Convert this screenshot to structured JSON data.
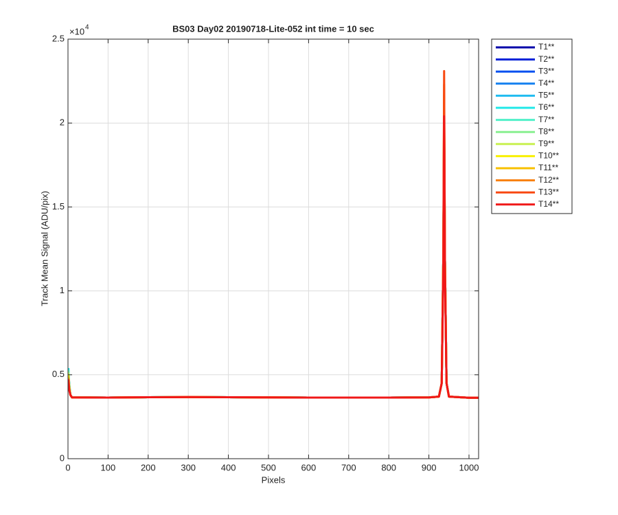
{
  "chart_data": {
    "type": "line",
    "title": "BS03 Day02 20190718-Lite-052 int time = 10 sec",
    "x_label": "Pixels",
    "y_label": "Track Mean Signal (ADU/pix)",
    "y_multiplier": "×10",
    "y_exponent": "4",
    "xlim": [
      0,
      1024
    ],
    "ylim": [
      0,
      25000
    ],
    "xticks": [
      0,
      100,
      200,
      300,
      400,
      500,
      600,
      700,
      800,
      900,
      1000
    ],
    "yticks": [
      0,
      {
        "value": 5000,
        "label": "0.5"
      },
      {
        "value": 10000,
        "label": "1"
      },
      {
        "value": 15000,
        "label": "1.5"
      },
      {
        "value": 20000,
        "label": "2"
      },
      {
        "value": 25000,
        "label": "2.5"
      }
    ],
    "grid": true,
    "legend": "outside-right",
    "x": [
      1,
      3,
      6,
      10,
      100,
      200,
      300,
      400,
      500,
      600,
      700,
      800,
      900,
      925,
      932,
      936,
      938,
      940,
      944,
      950,
      1000,
      1024
    ],
    "series": [
      {
        "name": "T1**",
        "color": "#0000a8",
        "values": [
          5000,
          4300,
          3800,
          3650,
          3640,
          3660,
          3670,
          3660,
          3650,
          3640,
          3640,
          3640,
          3650,
          3700,
          4500,
          12000,
          20000,
          12000,
          4500,
          3700,
          3630,
          3630
        ]
      },
      {
        "name": "T2**",
        "color": "#0020d8",
        "values": [
          5100,
          4350,
          3800,
          3650,
          3640,
          3660,
          3670,
          3660,
          3650,
          3640,
          3640,
          3640,
          3650,
          3700,
          4500,
          12000,
          20100,
          12000,
          4500,
          3700,
          3630,
          3630
        ]
      },
      {
        "name": "T3**",
        "color": "#0050f0",
        "values": [
          5200,
          4400,
          3800,
          3650,
          3640,
          3660,
          3670,
          3660,
          3650,
          3640,
          3640,
          3640,
          3650,
          3700,
          4500,
          12000,
          20200,
          12000,
          4500,
          3700,
          3630,
          3630
        ]
      },
      {
        "name": "T4**",
        "color": "#1480f0",
        "values": [
          5300,
          4450,
          3800,
          3650,
          3640,
          3660,
          3670,
          3660,
          3650,
          3640,
          3640,
          3640,
          3650,
          3700,
          4500,
          12000,
          20300,
          12000,
          4500,
          3700,
          3630,
          3630
        ]
      },
      {
        "name": "T5**",
        "color": "#20bcf0",
        "values": [
          5400,
          4500,
          3800,
          3650,
          3640,
          3660,
          3670,
          3660,
          3650,
          3640,
          3640,
          3640,
          3650,
          3700,
          4500,
          12000,
          20400,
          12000,
          4500,
          3700,
          3630,
          3630
        ]
      },
      {
        "name": "T6**",
        "color": "#20e8e8",
        "values": [
          5400,
          4500,
          3800,
          3650,
          3640,
          3660,
          3670,
          3660,
          3650,
          3640,
          3640,
          3640,
          3650,
          3700,
          4500,
          12000,
          20500,
          12000,
          4500,
          3700,
          3630,
          3630
        ]
      },
      {
        "name": "T7**",
        "color": "#50f0c8",
        "values": [
          5300,
          4450,
          3800,
          3650,
          3640,
          3660,
          3670,
          3660,
          3650,
          3640,
          3640,
          3640,
          3650,
          3700,
          4500,
          12000,
          20600,
          12000,
          4500,
          3700,
          3630,
          3630
        ]
      },
      {
        "name": "T8**",
        "color": "#88f090",
        "values": [
          5200,
          4400,
          3800,
          3650,
          3640,
          3660,
          3670,
          3660,
          3650,
          3640,
          3640,
          3640,
          3650,
          3700,
          4500,
          12000,
          20800,
          12000,
          4500,
          3700,
          3630,
          3630
        ]
      },
      {
        "name": "T9**",
        "color": "#c8f050",
        "values": [
          5100,
          4350,
          3800,
          3650,
          3640,
          3660,
          3670,
          3660,
          3650,
          3640,
          3640,
          3640,
          3650,
          3700,
          4500,
          12000,
          21000,
          12000,
          4500,
          3700,
          3630,
          3630
        ]
      },
      {
        "name": "T10**",
        "color": "#f8f000",
        "values": [
          5000,
          4300,
          3800,
          3650,
          3640,
          3660,
          3670,
          3660,
          3650,
          3640,
          3640,
          3640,
          3650,
          3700,
          4500,
          12000,
          21300,
          12000,
          4500,
          3700,
          3630,
          3630
        ]
      },
      {
        "name": "T11**",
        "color": "#f8c000",
        "values": [
          4900,
          4250,
          3800,
          3650,
          3640,
          3660,
          3670,
          3660,
          3650,
          3640,
          3640,
          3640,
          3650,
          3700,
          4500,
          12000,
          21700,
          12000,
          4500,
          3700,
          3630,
          3630
        ]
      },
      {
        "name": "T12**",
        "color": "#f88010",
        "values": [
          4800,
          4200,
          3800,
          3650,
          3640,
          3660,
          3670,
          3660,
          3650,
          3640,
          3640,
          3640,
          3650,
          3700,
          4500,
          12000,
          22300,
          12000,
          4500,
          3700,
          3630,
          3630
        ]
      },
      {
        "name": "T13**",
        "color": "#f84810",
        "values": [
          4750,
          4150,
          3800,
          3650,
          3640,
          3660,
          3670,
          3660,
          3650,
          3640,
          3640,
          3640,
          3650,
          3700,
          4500,
          12000,
          23100,
          12000,
          4500,
          3700,
          3630,
          3630
        ]
      },
      {
        "name": "T14**",
        "color": "#f01818",
        "values": [
          4700,
          4100,
          3800,
          3650,
          3640,
          3660,
          3670,
          3660,
          3650,
          3640,
          3640,
          3640,
          3650,
          3700,
          4500,
          11000,
          20400,
          11000,
          4500,
          3700,
          3630,
          3630
        ]
      }
    ]
  }
}
